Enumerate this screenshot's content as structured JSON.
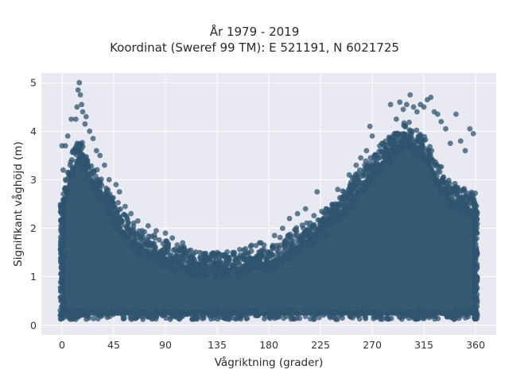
{
  "chart_data": {
    "type": "scatter",
    "title": "År 1979 - 2019",
    "subtitle": "Koordinat (Sweref 99 TM): E 521191, N 6021725",
    "xlabel": "Vågriktning (grader)",
    "ylabel": "Signifikant våghöjd (m)",
    "xlim": [
      -18,
      378
    ],
    "ylim": [
      -0.2,
      5.2
    ],
    "xticks": [
      0,
      45,
      90,
      135,
      180,
      225,
      270,
      315,
      360
    ],
    "yticks": [
      0,
      1,
      2,
      3,
      4,
      5
    ],
    "grid": true,
    "marker_color": "#2f5470",
    "background": "#e9e9f1",
    "envelope": {
      "x": [
        0,
        5,
        10,
        15,
        20,
        25,
        30,
        35,
        40,
        45,
        50,
        55,
        60,
        70,
        80,
        90,
        100,
        110,
        120,
        130,
        140,
        150,
        160,
        170,
        180,
        190,
        200,
        210,
        220,
        230,
        240,
        250,
        260,
        270,
        280,
        290,
        300,
        305,
        310,
        320,
        330,
        340,
        350,
        360
      ],
      "y": [
        2.5,
        3.1,
        3.4,
        3.7,
        3.4,
        3.2,
        3.0,
        2.8,
        2.6,
        2.4,
        2.2,
        2.05,
        1.9,
        1.75,
        1.6,
        1.5,
        1.42,
        1.35,
        1.32,
        1.3,
        1.3,
        1.32,
        1.35,
        1.4,
        1.45,
        1.55,
        1.7,
        1.85,
        2.0,
        2.2,
        2.4,
        2.7,
        3.0,
        3.3,
        3.55,
        3.8,
        3.95,
        3.9,
        3.8,
        3.5,
        3.0,
        2.7,
        2.6,
        2.5
      ],
      "y_min": 0.12
    },
    "outliers": [
      {
        "x": 15,
        "y": 5.0
      },
      {
        "x": 14,
        "y": 4.85
      },
      {
        "x": 16,
        "y": 4.75
      },
      {
        "x": 17,
        "y": 4.55
      },
      {
        "x": 13,
        "y": 4.5
      },
      {
        "x": 18,
        "y": 4.4
      },
      {
        "x": 21,
        "y": 4.3
      },
      {
        "x": 20,
        "y": 4.15
      },
      {
        "x": 12,
        "y": 4.25
      },
      {
        "x": 8,
        "y": 4.25
      },
      {
        "x": 24,
        "y": 4.0
      },
      {
        "x": 27,
        "y": 3.85
      },
      {
        "x": 5,
        "y": 3.9
      },
      {
        "x": 3,
        "y": 3.7
      },
      {
        "x": 30,
        "y": 3.6
      },
      {
        "x": 33,
        "y": 3.5
      },
      {
        "x": 37,
        "y": 3.3
      },
      {
        "x": 41,
        "y": 3.0
      },
      {
        "x": 47,
        "y": 2.9
      },
      {
        "x": 50,
        "y": 2.75
      },
      {
        "x": 55,
        "y": 2.45
      },
      {
        "x": 60,
        "y": 2.3
      },
      {
        "x": 66,
        "y": 2.15
      },
      {
        "x": 75,
        "y": 2.05
      },
      {
        "x": 82,
        "y": 1.95
      },
      {
        "x": 90,
        "y": 1.9
      },
      {
        "x": 96,
        "y": 1.8
      },
      {
        "x": 105,
        "y": 1.7
      },
      {
        "x": 112,
        "y": 1.55
      },
      {
        "x": 120,
        "y": 1.5
      },
      {
        "x": 130,
        "y": 1.45
      },
      {
        "x": 140,
        "y": 1.45
      },
      {
        "x": 150,
        "y": 1.5
      },
      {
        "x": 158,
        "y": 1.55
      },
      {
        "x": 165,
        "y": 1.65
      },
      {
        "x": 172,
        "y": 1.7
      },
      {
        "x": 185,
        "y": 1.85
      },
      {
        "x": 192,
        "y": 2.0
      },
      {
        "x": 198,
        "y": 2.2
      },
      {
        "x": 205,
        "y": 2.3
      },
      {
        "x": 212,
        "y": 2.4
      },
      {
        "x": 222,
        "y": 2.75
      },
      {
        "x": 230,
        "y": 2.4
      },
      {
        "x": 240,
        "y": 2.8
      },
      {
        "x": 250,
        "y": 3.1
      },
      {
        "x": 256,
        "y": 3.3
      },
      {
        "x": 260,
        "y": 3.45
      },
      {
        "x": 265,
        "y": 3.6
      },
      {
        "x": 268,
        "y": 4.1
      },
      {
        "x": 270,
        "y": 3.9
      },
      {
        "x": 275,
        "y": 3.5
      },
      {
        "x": 282,
        "y": 3.7
      },
      {
        "x": 286,
        "y": 4.55
      },
      {
        "x": 291,
        "y": 4.25
      },
      {
        "x": 294,
        "y": 4.6
      },
      {
        "x": 297,
        "y": 4.45
      },
      {
        "x": 300,
        "y": 4.55
      },
      {
        "x": 303,
        "y": 4.75
      },
      {
        "x": 306,
        "y": 4.5
      },
      {
        "x": 309,
        "y": 4.4
      },
      {
        "x": 312,
        "y": 4.55
      },
      {
        "x": 315,
        "y": 4.5
      },
      {
        "x": 318,
        "y": 4.65
      },
      {
        "x": 321,
        "y": 4.7
      },
      {
        "x": 324,
        "y": 4.4
      },
      {
        "x": 327,
        "y": 4.35
      },
      {
        "x": 330,
        "y": 4.2
      },
      {
        "x": 334,
        "y": 4.05
      },
      {
        "x": 338,
        "y": 3.75
      },
      {
        "x": 343,
        "y": 4.35
      },
      {
        "x": 347,
        "y": 3.8
      },
      {
        "x": 351,
        "y": 3.6
      },
      {
        "x": 355,
        "y": 4.05
      },
      {
        "x": 358,
        "y": 3.95
      },
      {
        "x": 0,
        "y": 3.7
      },
      {
        "x": 1,
        "y": 3.2
      }
    ]
  }
}
